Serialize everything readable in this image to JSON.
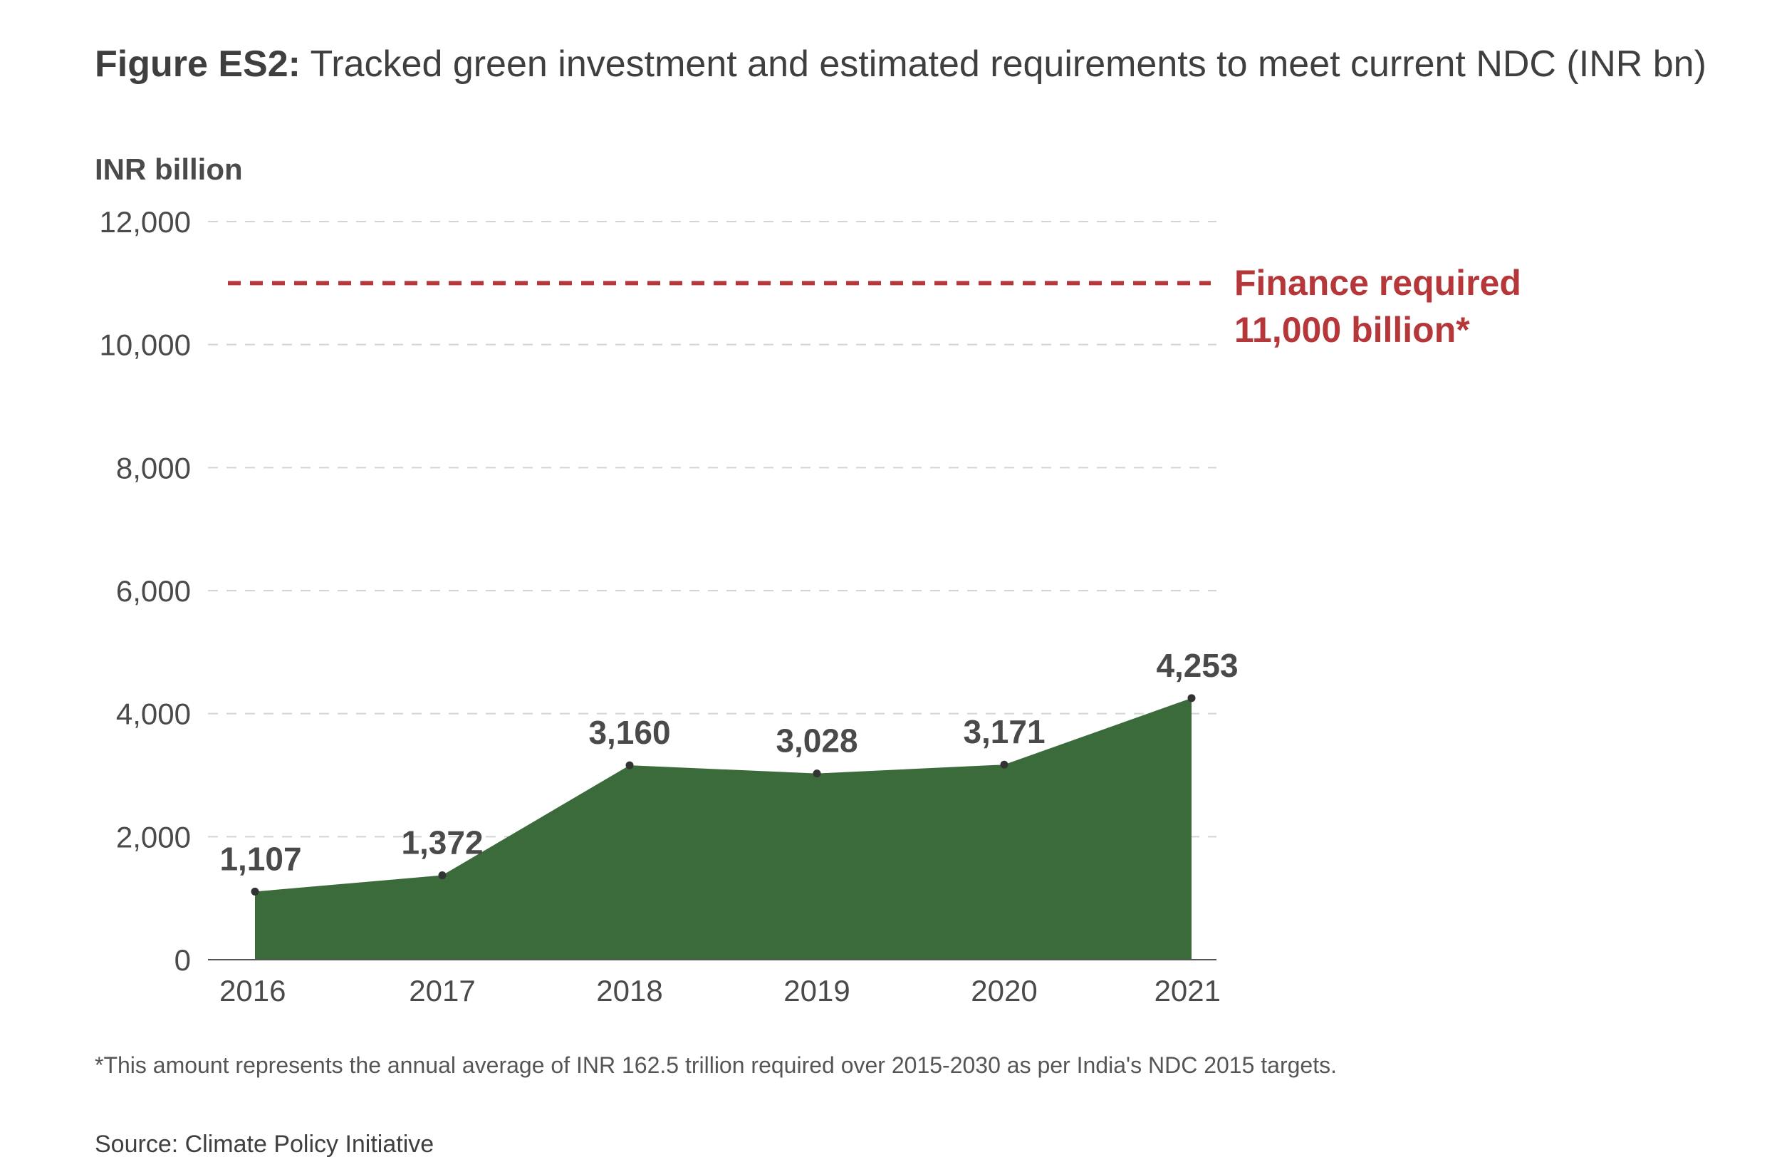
{
  "title": {
    "lead": "Figure ES2:",
    "rest": " Tracked green investment and estimated requirements to meet current NDC (INR bn)"
  },
  "footnote": "*This amount represents the annual average of INR 162.5 trillion required over 2015-2030 as per India's NDC 2015 targets.",
  "source": "Source: Climate Policy Initiative",
  "colors": {
    "area": "#3b6b3a",
    "reference": "#b5373a",
    "grid": "#d4d4d4",
    "axis": "#555555",
    "marker": "#333333"
  },
  "chart_data": {
    "type": "area",
    "ylabel": "INR billion",
    "categories": [
      "2016",
      "2017",
      "2018",
      "2019",
      "2020",
      "2021"
    ],
    "values": [
      1107,
      1372,
      3160,
      3028,
      3171,
      4253
    ],
    "data_labels": [
      "1,107",
      "1,372",
      "3,160",
      "3,028",
      "3,171",
      "4,253"
    ],
    "ylim": [
      0,
      12000
    ],
    "yticks": [
      0,
      2000,
      4000,
      6000,
      8000,
      10000,
      12000
    ],
    "ytick_labels": [
      "0",
      "2,000",
      "4,000",
      "6,000",
      "8,000",
      "10,000",
      "12,000"
    ],
    "grid": "dashed horizontal",
    "reference_line": {
      "value": 11000,
      "label_line1": "Finance required",
      "label_line2": "11,000 billion*"
    }
  }
}
